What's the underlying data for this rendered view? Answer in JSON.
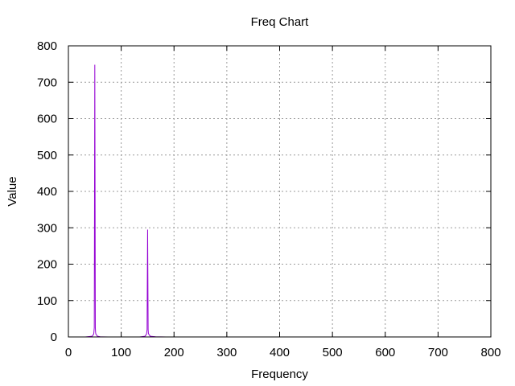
{
  "chart_data": {
    "type": "line",
    "title": "Freq Chart",
    "xlabel": "Frequency",
    "ylabel": "Value",
    "xlim": [
      0,
      800
    ],
    "ylim": [
      0,
      800
    ],
    "xticks": [
      0,
      100,
      200,
      300,
      400,
      500,
      600,
      700,
      800
    ],
    "yticks": [
      0,
      100,
      200,
      300,
      400,
      500,
      600,
      700,
      800
    ],
    "grid": true,
    "legend": "none",
    "series": [
      {
        "color": "#9400d3",
        "x": [
          32,
          45,
          48,
          49,
          49.5,
          50,
          50.5,
          51,
          51.5,
          52,
          55,
          60,
          75,
          135,
          145,
          148,
          149,
          149.5,
          150,
          150.5,
          151,
          151.5,
          152,
          155,
          165,
          185
        ],
        "y": [
          0,
          2,
          8,
          25,
          385,
          748,
          385,
          25,
          12,
          8,
          2,
          0.5,
          0,
          0,
          2,
          8,
          20,
          162,
          295,
          162,
          20,
          10,
          8,
          2,
          0.5,
          0
        ]
      }
    ]
  }
}
